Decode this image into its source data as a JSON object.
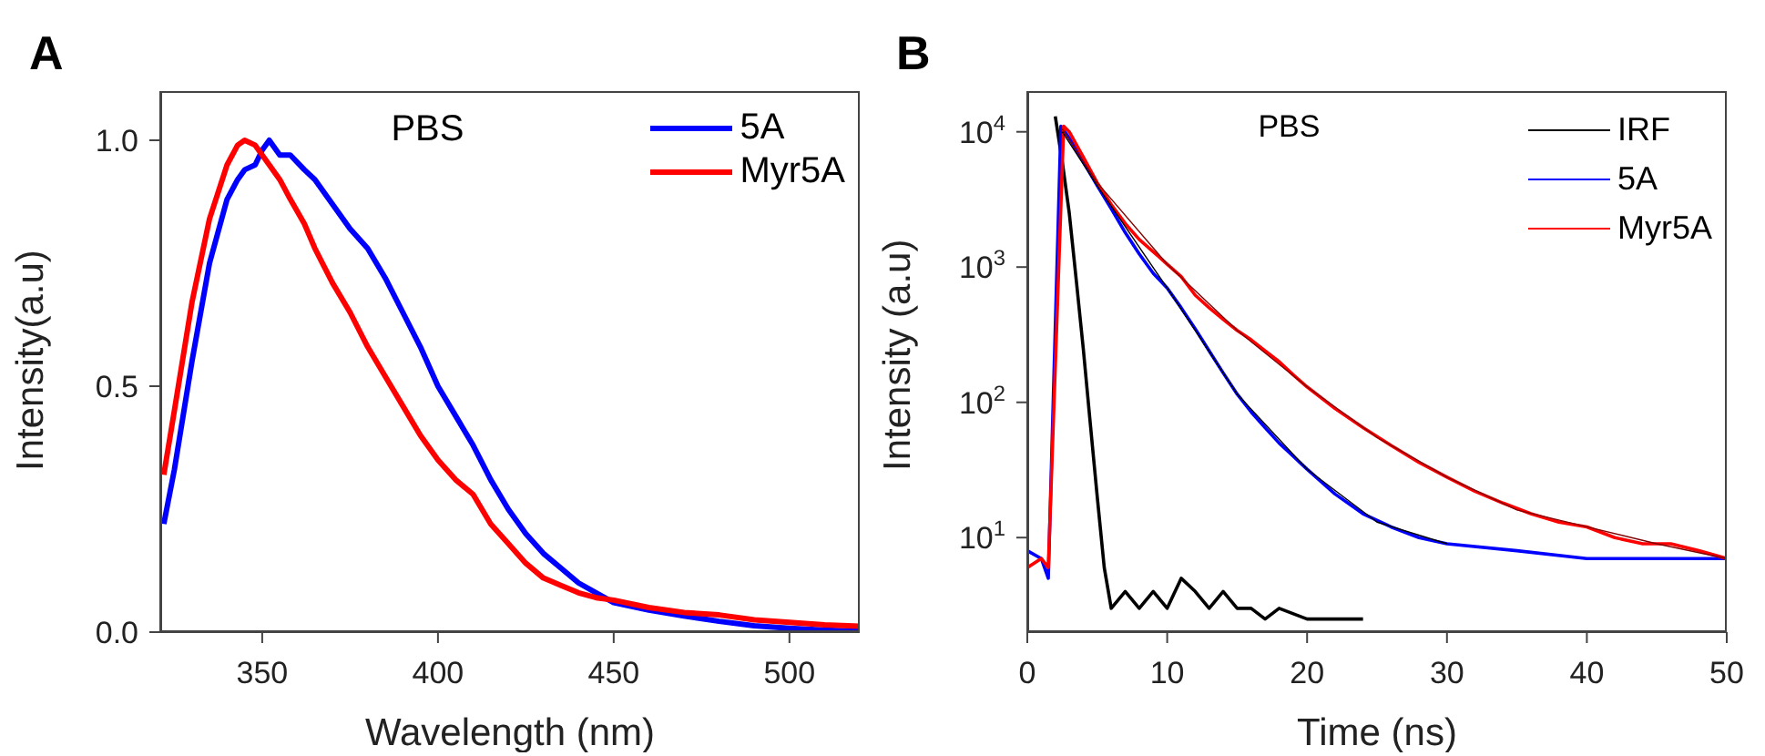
{
  "chart_data": [
    {
      "type": "line",
      "title": "A",
      "xlabel": "Wavelength (nm)",
      "ylabel": "Intensity(a.u)",
      "annotations": [
        "PBS"
      ],
      "xlim": [
        321,
        520
      ],
      "xticks": [
        350,
        400,
        450,
        500
      ],
      "ylim": [
        0,
        1.1
      ],
      "yticks": [
        {
          "value": 0,
          "label": "0.0"
        },
        0.5,
        {
          "value": 1,
          "label": "1.0"
        }
      ],
      "legend": "top right",
      "marker": "none",
      "line_style": "solid",
      "x": [
        322,
        325,
        330,
        335,
        340,
        343,
        345,
        348,
        350,
        352,
        355,
        358,
        362,
        365,
        370,
        375,
        380,
        385,
        390,
        395,
        400,
        405,
        410,
        415,
        420,
        425,
        430,
        435,
        440,
        445,
        450,
        460,
        470,
        480,
        490,
        500,
        510,
        520
      ],
      "series": [
        {
          "name": "5A",
          "color": "#0000ff",
          "values": [
            0.22,
            0.33,
            0.55,
            0.75,
            0.88,
            0.92,
            0.94,
            0.95,
            0.98,
            1.0,
            0.97,
            0.97,
            0.94,
            0.92,
            0.87,
            0.82,
            0.78,
            0.72,
            0.65,
            0.58,
            0.5,
            0.44,
            0.38,
            0.31,
            0.25,
            0.2,
            0.16,
            0.13,
            0.1,
            0.08,
            0.06,
            0.045,
            0.033,
            0.022,
            0.013,
            0.008,
            0.004,
            0.002
          ]
        },
        {
          "name": "Myr5A",
          "color": "#ff0000",
          "values": [
            0.32,
            0.45,
            0.67,
            0.84,
            0.95,
            0.99,
            1.0,
            0.99,
            0.97,
            0.95,
            0.92,
            0.88,
            0.83,
            0.78,
            0.71,
            0.65,
            0.58,
            0.52,
            0.46,
            0.4,
            0.35,
            0.31,
            0.28,
            0.22,
            0.18,
            0.14,
            0.11,
            0.095,
            0.08,
            0.07,
            0.065,
            0.05,
            0.04,
            0.035,
            0.025,
            0.02,
            0.015,
            0.012
          ]
        }
      ]
    },
    {
      "type": "line",
      "title": "B",
      "xlabel": "Time (ns)",
      "ylabel": "Intensity (a.u)",
      "annotations": [
        "PBS"
      ],
      "log": "y",
      "xlim": [
        0,
        50
      ],
      "xticks": [
        0,
        10,
        20,
        30,
        40,
        50
      ],
      "ylim": [
        2,
        20000
      ],
      "yticks": [
        {
          "value": 10,
          "label": "10$^{1}$"
        },
        {
          "value": 100,
          "label": "10$^{2}$"
        },
        {
          "value": 1000,
          "label": "10$^{3}$"
        },
        {
          "value": 10000,
          "label": "10$^{4}$"
        }
      ],
      "legend": "top right",
      "marker": "none",
      "line_style": "solid",
      "series": [
        {
          "name": "IRF",
          "color": "#000000",
          "x": [
            2,
            2.5,
            3,
            3.5,
            4,
            4.5,
            5,
            5.5,
            6,
            7,
            8,
            9,
            10,
            11,
            12,
            13,
            14,
            15,
            16,
            17,
            18,
            20,
            22,
            24
          ],
          "values": [
            13000,
            6000,
            2500,
            800,
            250,
            70,
            20,
            6,
            3,
            4,
            3,
            4,
            3,
            5,
            4,
            3,
            4,
            3,
            3,
            2.5,
            3,
            2.5,
            2.5,
            2.5
          ]
        },
        {
          "name": "5A",
          "color": "#0000ff",
          "x": [
            0,
            1,
            1.5,
            2.4,
            3,
            4,
            5,
            6,
            7,
            8,
            9,
            10,
            11,
            12,
            13,
            14,
            15,
            16,
            17,
            18,
            19,
            20,
            22,
            24,
            26,
            28,
            30,
            35,
            40,
            45,
            50
          ],
          "values": [
            8,
            7,
            5,
            11000,
            9000,
            6000,
            4000,
            2700,
            1800,
            1250,
            900,
            700,
            500,
            350,
            240,
            165,
            115,
            85,
            65,
            50,
            40,
            32,
            21,
            15,
            12,
            10,
            9,
            8,
            7,
            7,
            7
          ]
        },
        {
          "name": "Myr5A",
          "color": "#ff0000",
          "x": [
            0,
            1,
            1.5,
            2.6,
            3,
            4,
            5,
            6,
            7,
            8,
            9,
            10,
            11,
            12,
            13,
            14,
            15,
            16,
            17,
            18,
            19,
            20,
            22,
            24,
            26,
            28,
            30,
            32,
            34,
            36,
            38,
            40,
            42,
            44,
            46,
            48,
            50
          ],
          "values": [
            6,
            7,
            6,
            11000,
            10000,
            6500,
            4200,
            2900,
            2100,
            1600,
            1300,
            1050,
            850,
            620,
            500,
            410,
            340,
            290,
            240,
            200,
            160,
            130,
            90,
            65,
            48,
            36,
            28,
            22,
            18,
            15,
            13,
            12,
            10,
            9,
            9,
            8,
            7
          ]
        },
        {
          "color": "#000000",
          "x": [
            2.5,
            5,
            10,
            15,
            20,
            25,
            30
          ],
          "values": [
            10000,
            4000,
            700,
            115,
            32,
            13,
            9
          ]
        },
        {
          "color": "#800000",
          "x": [
            2.5,
            5,
            10,
            15,
            20,
            25,
            30,
            35,
            40,
            45,
            50
          ],
          "values": [
            10500,
            4200,
            1050,
            340,
            130,
            55,
            28,
            16,
            12,
            9,
            7
          ]
        }
      ]
    }
  ]
}
